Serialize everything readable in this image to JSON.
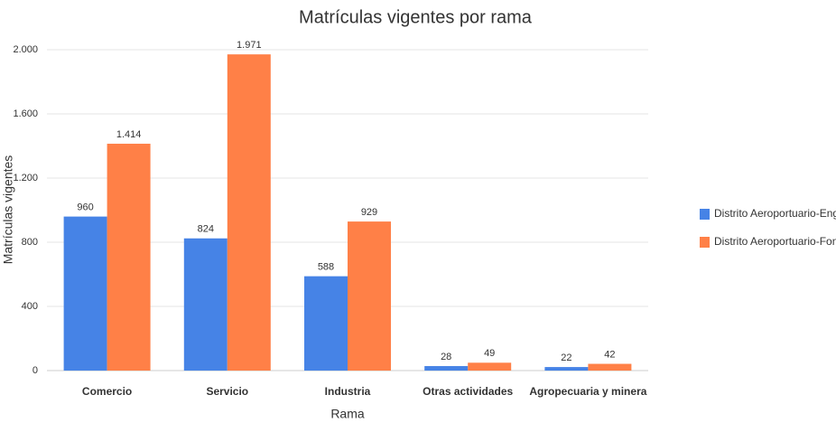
{
  "chart_data": {
    "type": "bar",
    "title": "Matrículas vigentes por rama",
    "x_label": "Rama",
    "y_label": "Matrículas vigentes",
    "categories": [
      "Comercio",
      "Servicio",
      "Industria",
      "Otras actividades",
      "Agropecuaria y minera"
    ],
    "series": [
      {
        "name": "Distrito Aeroportuario-Engativá",
        "color": "#4683e6",
        "values": [
          960,
          824,
          588,
          28,
          22
        ],
        "value_labels": [
          "960",
          "824",
          "588",
          "28",
          "22"
        ]
      },
      {
        "name": "Distrito Aeroportuario-Fontibón",
        "color": "#ff8047",
        "values": [
          1414,
          1971,
          929,
          49,
          42
        ],
        "value_labels": [
          "1.414",
          "1.971",
          "929",
          "49",
          "42"
        ]
      }
    ],
    "ylim": [
      0,
      2000
    ],
    "yticks": [
      0,
      400,
      800,
      {
        "value": 1200,
        "label": "1.200"
      },
      {
        "value": 1600,
        "label": "1.600"
      },
      {
        "value": 2000,
        "label": "2.000"
      }
    ],
    "grid": true,
    "legend": "right"
  }
}
